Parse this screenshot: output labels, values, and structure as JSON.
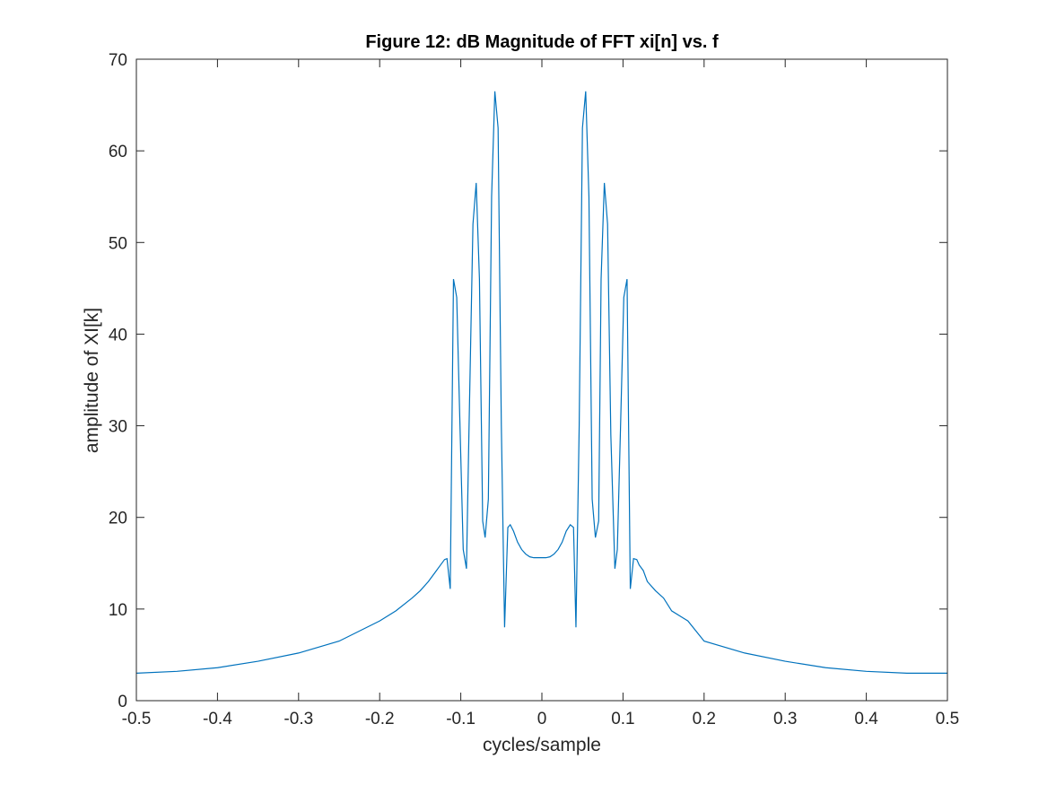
{
  "chart_data": {
    "type": "line",
    "title": "Figure 12: dB Magnitude of FFT xi[n] vs. f",
    "xlabel": "cycles/sample",
    "ylabel": "amplitude of XI[k]",
    "xlim": [
      -0.5,
      0.5
    ],
    "ylim": [
      0,
      70
    ],
    "xticks": [
      -0.5,
      -0.4,
      -0.3,
      -0.2,
      -0.1,
      0,
      0.1,
      0.2,
      0.3,
      0.4,
      0.5
    ],
    "xtick_labels": [
      "-0.5",
      "-0.4",
      "-0.3",
      "-0.2",
      "-0.1",
      "0",
      "0.1",
      "0.2",
      "0.3",
      "0.4",
      "0.5"
    ],
    "yticks": [
      0,
      10,
      20,
      30,
      40,
      50,
      60,
      70
    ],
    "ytick_labels": [
      "0",
      "10",
      "20",
      "30",
      "40",
      "50",
      "60",
      "70"
    ],
    "grid": false,
    "series_color": "#0072BD",
    "series": [
      {
        "x": [
          -0.5,
          -0.45,
          -0.4,
          -0.35,
          -0.3,
          -0.25,
          -0.2,
          -0.18,
          -0.16,
          -0.15,
          -0.14,
          -0.13,
          -0.125,
          -0.12,
          -0.117,
          -0.113,
          -0.109,
          -0.105,
          -0.101,
          -0.097,
          -0.093,
          -0.09,
          -0.085,
          -0.081,
          -0.077,
          -0.073,
          -0.07,
          -0.066,
          -0.062,
          -0.058,
          -0.054,
          -0.05,
          -0.046,
          -0.042,
          -0.039,
          -0.035,
          -0.03,
          -0.025,
          -0.02,
          -0.015,
          -0.01,
          -0.005,
          0,
          0.005,
          0.01,
          0.015,
          0.02,
          0.025,
          0.03,
          0.035,
          0.039,
          0.042,
          0.046,
          0.05,
          0.054,
          0.058,
          0.062,
          0.066,
          0.07,
          0.073,
          0.077,
          0.081,
          0.085,
          0.09,
          0.093,
          0.097,
          0.101,
          0.105,
          0.109,
          0.113,
          0.117,
          0.12,
          0.125,
          0.13,
          0.14,
          0.15,
          0.16,
          0.18,
          0.2,
          0.25,
          0.3,
          0.35,
          0.4,
          0.45,
          0.5
        ],
        "y": [
          3.0,
          3.2,
          3.6,
          4.3,
          5.2,
          6.5,
          8.7,
          9.8,
          11.2,
          12.0,
          13.0,
          14.2,
          14.8,
          15.4,
          15.5,
          12.2,
          46.0,
          44.0,
          30.0,
          16.5,
          14.4,
          29.0,
          52.0,
          56.5,
          46.0,
          19.6,
          17.8,
          22.0,
          55.0,
          66.5,
          62.5,
          30.0,
          8.0,
          18.9,
          19.2,
          18.5,
          17.3,
          16.5,
          16.0,
          15.7,
          15.6,
          15.6,
          15.6,
          15.6,
          15.7,
          16.0,
          16.5,
          17.3,
          18.5,
          19.2,
          18.9,
          8.0,
          30.0,
          62.5,
          66.5,
          55.0,
          22.0,
          17.8,
          19.6,
          46.0,
          56.5,
          52.0,
          29.0,
          14.4,
          16.5,
          30.0,
          44.0,
          46.0,
          12.2,
          15.5,
          15.4,
          14.8,
          14.2,
          13.0,
          12.0,
          11.2,
          9.8,
          8.7,
          6.5,
          5.2,
          4.3,
          3.6,
          3.2,
          3.0,
          3.0
        ]
      }
    ]
  }
}
